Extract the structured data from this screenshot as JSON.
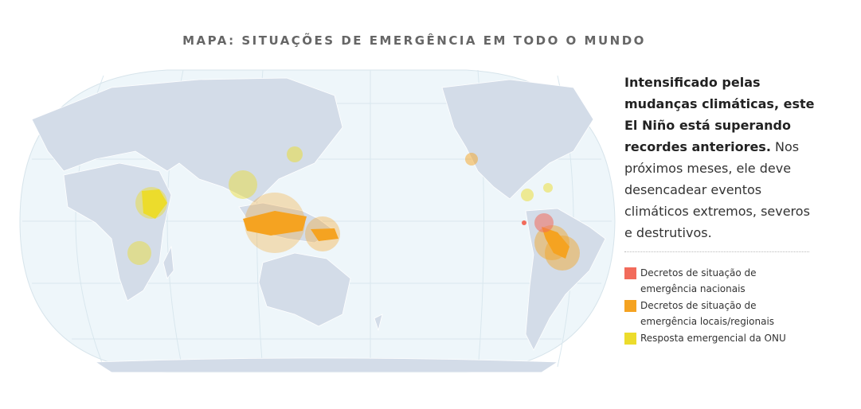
{
  "header": {
    "title": "MAPA: SITUAÇÕES DE EMERGÊNCIA EM TODO O MUNDO"
  },
  "description": {
    "bold": "Intensificado pelas mudanças climáticas, este El Niño está superando recordes anteriores.",
    "rest": "Nos próximos meses, ele deve desencadear eventos climáticos extremos, severos e destrutivos."
  },
  "legend": {
    "items": [
      {
        "label": "Decretos de situação de emergência nacionais",
        "color": "#f26b5b"
      },
      {
        "label": "Decretos de situação de emergência locais/regionais",
        "color": "#f5a321"
      },
      {
        "label": "Resposta emergencial da ONU",
        "color": "#ecdc2c"
      }
    ]
  }
}
